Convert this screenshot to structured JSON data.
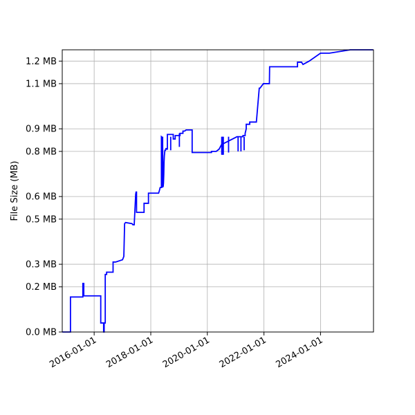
{
  "chart_data": {
    "type": "line",
    "title": "",
    "xlabel": "",
    "ylabel": "File Size (MB)",
    "grid": true,
    "line_color": "#0000ff",
    "x_ticks": [
      "2016-01-01",
      "2018-01-01",
      "2020-01-01",
      "2022-01-01",
      "2024-01-01"
    ],
    "y_ticks": [
      "0.0 MB",
      "0.2 MB",
      "0.3 MB",
      "0.5 MB",
      "0.6 MB",
      "0.8 MB",
      "0.9 MB",
      "1.1 MB",
      "1.2 MB"
    ],
    "y_tick_values": [
      0.0,
      0.2,
      0.3,
      0.5,
      0.6,
      0.8,
      0.9,
      1.1,
      1.2
    ],
    "xlim": [
      "2014-11-15",
      "2025-11-15"
    ],
    "ylim": [
      0.0,
      1.2
    ],
    "series": [
      {
        "x": [
          "2014-11-15",
          "2015-03-01",
          "2015-03-01",
          "2015-08-08",
          "2015-08-08",
          "2015-08-20",
          "2015-08-20",
          "2015-08-25",
          "2015-08-25",
          "2016-03-26",
          "2016-03-26",
          "2016-05-02",
          "2016-05-02",
          "2016-05-09",
          "2016-05-09",
          "2016-05-23",
          "2016-05-23",
          "2016-06-10",
          "2016-06-10",
          "2016-09-01",
          "2016-09-01",
          "2016-10-04",
          "2016-10-04",
          "2017-01-01",
          "2017-01-18",
          "2017-01-28",
          "2017-02-10",
          "2017-05-04",
          "2017-05-04",
          "2017-05-15",
          "2017-06-01",
          "2017-06-20",
          "2017-06-25",
          "2017-07-01",
          "2017-07-01",
          "2017-10-06",
          "2017-10-06",
          "2017-12-02",
          "2017-12-02",
          "2018-04-12",
          "2018-04-25",
          "2018-05-02",
          "2018-05-18",
          "2018-05-18",
          "2018-06-02",
          "2018-06-05",
          "2018-06-05",
          "2018-06-10",
          "2018-06-14",
          "2018-06-18",
          "2018-06-21",
          "2018-06-25",
          "2018-07-02",
          "2018-07-10",
          "2018-07-18",
          "2018-07-18",
          "2018-08-03",
          "2018-08-03",
          "2018-10-18",
          "2018-10-18",
          "2018-11-12",
          "2018-11-12",
          "2019-01-13",
          "2019-01-13",
          "2019-02-20",
          "2019-02-20",
          "2019-03-14",
          "2019-04-02",
          "2019-06-19",
          "2019-06-19",
          "2020-02-23",
          "2020-02-23",
          "2020-04-25",
          "2020-06-01",
          "2020-06-01",
          "2020-06-09",
          "2020-06-09",
          "2020-06-16",
          "2020-06-16",
          "2020-07-02",
          "2020-07-02",
          "2021-01-18",
          "2021-01-18",
          "2021-02-03",
          "2021-02-03",
          "2021-04-05",
          "2021-04-05",
          "2021-05-03",
          "2021-05-03",
          "2021-05-17",
          "2021-05-17",
          "2021-07-01",
          "2021-07-01",
          "2021-09-25",
          "2021-11-01",
          "2021-11-10",
          "2021-12-25",
          "2022-01-15",
          "2022-02-01",
          "2022-03-12",
          "2022-03-15",
          "2023-03-10",
          "2023-03-10",
          "2023-05-01",
          "2023-05-01",
          "2023-05-20",
          "2023-05-20",
          "2023-08-08",
          "2023-08-08",
          "2024-01-01",
          "2024-01-01",
          "2024-04-25",
          "2024-04-25",
          "2025-01-20",
          "2025-01-20",
          "2025-04-25",
          "2025-04-25",
          "2025-06-20",
          "2025-06-20",
          "2025-11-10",
          "2025-11-10"
        ],
        "y": [
          0.0,
          0.0,
          0.155,
          0.155,
          0.215,
          0.215,
          0.16,
          0.16,
          0.16,
          0.16,
          0.04,
          0.04,
          0.0,
          0.0,
          0.04,
          0.04,
          0.255,
          0.255,
          0.265,
          0.265,
          0.31,
          0.31,
          0.31,
          0.32,
          0.335,
          0.48,
          0.485,
          0.48,
          0.48,
          0.475,
          0.475,
          0.61,
          0.62,
          0.62,
          0.53,
          0.53,
          0.57,
          0.57,
          0.615,
          0.615,
          0.63,
          0.64,
          0.64,
          0.865,
          0.86,
          0.73,
          0.645,
          0.645,
          0.66,
          0.7,
          0.75,
          0.78,
          0.805,
          0.805,
          0.815,
          0.81,
          0.81,
          0.875,
          0.875,
          0.855,
          0.855,
          0.87,
          0.87,
          0.88,
          0.88,
          0.89,
          0.89,
          0.895,
          0.895,
          0.795,
          0.795,
          0.8,
          0.8,
          0.81,
          0.81,
          0.815,
          0.815,
          0.82,
          0.82,
          0.83,
          0.83,
          0.865,
          0.865,
          0.865,
          0.865,
          0.865,
          0.87,
          0.87,
          0.88,
          0.9,
          0.92,
          0.92,
          0.93,
          0.93,
          1.08,
          1.08,
          1.1,
          1.1,
          1.1,
          1.1,
          1.175,
          1.175,
          1.195,
          1.195,
          1.195,
          1.185,
          1.185,
          1.2,
          1.2,
          1.235,
          1.235,
          1.235,
          1.235,
          1.25,
          1.25,
          1.25,
          1.25,
          1.25,
          1.25,
          1.25,
          1.25
        ]
      }
    ]
  },
  "spikes": [
    {
      "x": "2018-05-20",
      "y0": 0.64,
      "y1": 0.865
    },
    {
      "x": "2018-05-27",
      "y0": 0.64,
      "y1": 0.865
    },
    {
      "x": "2018-06-03",
      "y0": 0.64,
      "y1": 0.865
    },
    {
      "x": "2018-09-15",
      "y0": 0.805,
      "y1": 0.865
    },
    {
      "x": "2019-01-05",
      "y0": 0.82,
      "y1": 0.88
    },
    {
      "x": "2020-07-05",
      "y0": 0.785,
      "y1": 0.865
    },
    {
      "x": "2020-07-15",
      "y0": 0.785,
      "y1": 0.865
    },
    {
      "x": "2020-07-25",
      "y0": 0.785,
      "y1": 0.865
    },
    {
      "x": "2020-10-01",
      "y0": 0.795,
      "y1": 0.865
    },
    {
      "x": "2021-02-01",
      "y0": 0.8,
      "y1": 0.865
    },
    {
      "x": "2021-03-10",
      "y0": 0.8,
      "y1": 0.865
    },
    {
      "x": "2021-04-20",
      "y0": 0.805,
      "y1": 0.865
    }
  ]
}
